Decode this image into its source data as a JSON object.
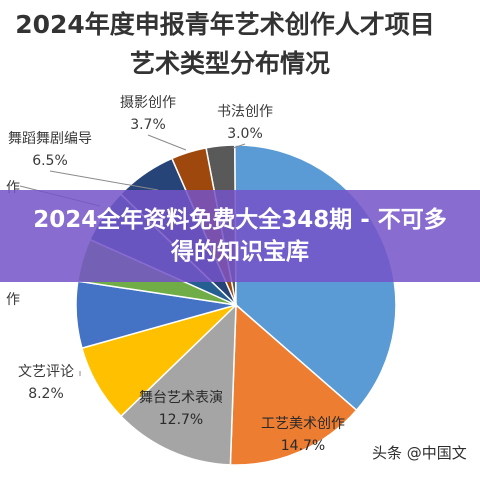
{
  "chart_data": {
    "type": "pie",
    "title_line1": "2024年度申报青年艺术创作人才项目",
    "title_line2": "艺术类型分布情况",
    "slices": [
      {
        "label": "书法创作",
        "value_label": "3.0%",
        "value": 3.0,
        "color": "#595959",
        "label_pos": "outside"
      },
      {
        "label": "",
        "value_label": "",
        "value": 38.0,
        "color": "#5b9bd5",
        "label_pos": "none"
      },
      {
        "label": "工艺美术创作",
        "value_label": "14.7%",
        "value": 14.7,
        "color": "#ed7d31",
        "label_pos": "inside"
      },
      {
        "label": "舞台艺术表演",
        "value_label": "12.7%",
        "value": 12.7,
        "color": "#a5a5a5",
        "label_pos": "inside"
      },
      {
        "label": "文艺评论",
        "value_label": "8.2%",
        "value": 8.2,
        "color": "#ffc000",
        "label_pos": "outside"
      },
      {
        "label": "",
        "value_label": "",
        "value": 7.0,
        "color": "#4472c4",
        "label_pos": "outside-cut"
      },
      {
        "label": "",
        "value_label": "",
        "value": 4.5,
        "color": "#70ad47",
        "label_pos": "hidden"
      },
      {
        "label": "",
        "value_label": "",
        "value": 5.7,
        "color": "#255e91",
        "label_pos": "outside-cut"
      },
      {
        "label": "舞蹈舞剧编导",
        "value_label": "6.5%",
        "value": 6.5,
        "color": "#264478",
        "label_pos": "outside"
      },
      {
        "label": "摄影创作",
        "value_label": "3.7%",
        "value": 3.7,
        "color": "#9e480e",
        "label_pos": "outside"
      }
    ],
    "cut_labels": [
      "作",
      "作"
    ]
  },
  "banner": {
    "title": "2024全年资料免费大全348期 - 不可多得的知识宝库"
  },
  "watermark": "头条 @中国文"
}
